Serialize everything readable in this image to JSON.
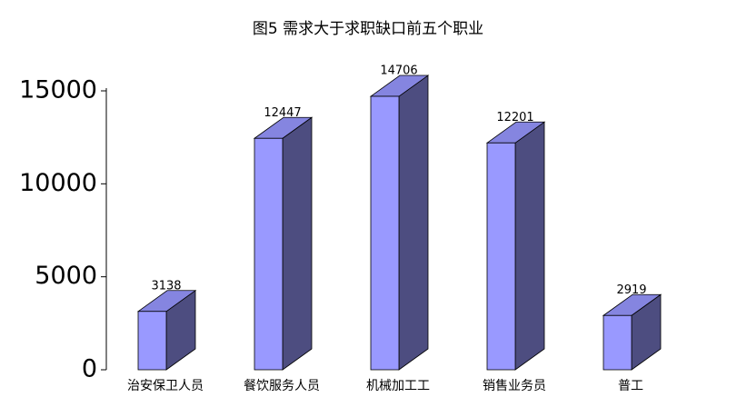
{
  "chart_data": {
    "type": "bar3d",
    "title": "图5  需求大于求职缺口前五个职业",
    "categories": [
      "治安保卫人员",
      "餐饮服务人员",
      "机械加工工",
      "销售业务员",
      "普工"
    ],
    "values": [
      3138,
      12447,
      14706,
      12201,
      2919
    ],
    "color": "#9999ff",
    "ylim": [
      0,
      15000
    ],
    "yticks": [
      0,
      5000,
      10000,
      15000
    ]
  }
}
